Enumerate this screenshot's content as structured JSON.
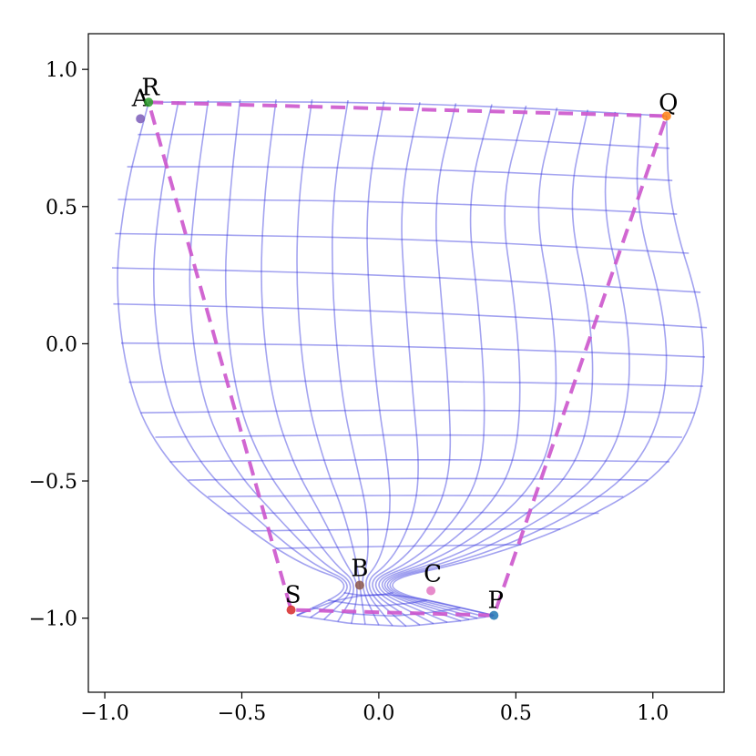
{
  "chart_data": {
    "type": "scatter",
    "title": "",
    "xlabel": "",
    "ylabel": "",
    "xlim": [
      -1.06,
      1.26
    ],
    "ylim": [
      -1.27,
      1.13
    ],
    "grid": false,
    "x_ticks": [
      {
        "value": -1.0,
        "label": "−1.0"
      },
      {
        "value": -0.5,
        "label": "−0.5"
      },
      {
        "value": 0.0,
        "label": "0.0"
      },
      {
        "value": 0.5,
        "label": "0.5"
      },
      {
        "value": 1.0,
        "label": "1.0"
      }
    ],
    "y_ticks": [
      {
        "value": 1.0,
        "label": "1.0"
      },
      {
        "value": 0.5,
        "label": "0.5"
      },
      {
        "value": 0.0,
        "label": "0.0"
      },
      {
        "value": -0.5,
        "label": "−0.5"
      },
      {
        "value": -1.0,
        "label": "−1.0"
      }
    ],
    "points": [
      {
        "label": "A",
        "x": -0.87,
        "y": 0.82,
        "color": "#7b5cb8"
      },
      {
        "label": "R",
        "x": -0.84,
        "y": 0.88,
        "color": "#2ca02c"
      },
      {
        "label": "Q",
        "x": 1.05,
        "y": 0.83,
        "color": "#ff7f0e"
      },
      {
        "label": "B",
        "x": -0.07,
        "y": -0.88,
        "color": "#8c564b"
      },
      {
        "label": "C",
        "x": 0.19,
        "y": -0.9,
        "color": "#e377c2"
      },
      {
        "label": "S",
        "x": -0.32,
        "y": -0.97,
        "color": "#d62728"
      },
      {
        "label": "P",
        "x": 0.42,
        "y": -0.99,
        "color": "#1f77b4"
      }
    ],
    "polygon": {
      "vertices": [
        "R",
        "Q",
        "P",
        "S"
      ],
      "color": "#cc55cc",
      "style": "dashed"
    },
    "mesh": {
      "color": "#3333dd",
      "rows": 16,
      "cols": 16,
      "top_boundary": [
        [
          -0.84,
          0.88
        ],
        [
          -0.55,
          0.89
        ],
        [
          -0.2,
          0.89
        ],
        [
          0.15,
          0.88
        ],
        [
          0.5,
          0.87
        ],
        [
          0.8,
          0.85
        ],
        [
          1.05,
          0.83
        ]
      ],
      "bottom_fan_boundary": [
        [
          -0.3,
          -0.99
        ],
        [
          -0.1,
          -1.02
        ],
        [
          0.1,
          -1.03
        ],
        [
          0.3,
          -1.01
        ],
        [
          0.42,
          -0.99
        ]
      ],
      "pinch_point": [
        -0.07,
        -0.88
      ],
      "left_boundary": [
        [
          -0.84,
          0.88
        ],
        [
          -0.95,
          0.55
        ],
        [
          -0.98,
          0.2
        ],
        [
          -0.9,
          -0.2
        ],
        [
          -0.75,
          -0.45
        ],
        [
          -0.55,
          -0.62
        ],
        [
          -0.3,
          -0.8
        ]
      ],
      "right_boundary": [
        [
          1.05,
          0.83
        ],
        [
          1.08,
          0.5
        ],
        [
          1.2,
          0.1
        ],
        [
          1.18,
          -0.2
        ],
        [
          1.05,
          -0.45
        ],
        [
          0.8,
          -0.62
        ],
        [
          0.4,
          -0.78
        ]
      ]
    }
  }
}
